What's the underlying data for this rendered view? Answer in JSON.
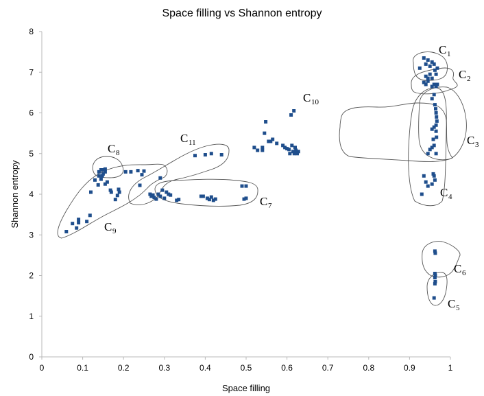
{
  "chart_data": {
    "type": "scatter",
    "title": "Space filling vs Shannon entropy",
    "xlabel": "Space filling",
    "ylabel": "Shannon entropy",
    "xlim": [
      0,
      1
    ],
    "ylim": [
      0,
      8
    ],
    "x_ticks": [
      "0",
      "0.1",
      "0.2",
      "0.3",
      "0.4",
      "0.5",
      "0.6",
      "0.7",
      "0.8",
      "0.9",
      "1"
    ],
    "y_ticks": [
      "0",
      "1",
      "2",
      "3",
      "4",
      "5",
      "6",
      "7",
      "8"
    ],
    "grid": false,
    "legend": "none",
    "marker_color": "#1f4e8c",
    "clusters": [
      {
        "label": "C",
        "sub": "1",
        "name": "C1"
      },
      {
        "label": "C",
        "sub": "2",
        "name": "C2"
      },
      {
        "label": "C",
        "sub": "3",
        "name": "C3"
      },
      {
        "label": "C",
        "sub": "4",
        "name": "C4"
      },
      {
        "label": "C",
        "sub": "5",
        "name": "C5"
      },
      {
        "label": "C",
        "sub": "6",
        "name": "C6"
      },
      {
        "label": "C",
        "sub": "7",
        "name": "C7"
      },
      {
        "label": "C",
        "sub": "8",
        "name": "C8"
      },
      {
        "label": "C",
        "sub": "9",
        "name": "C9"
      },
      {
        "label": "C",
        "sub": "10",
        "name": "C10"
      },
      {
        "label": "C",
        "sub": "11",
        "name": "C11"
      }
    ],
    "points": [
      [
        0.06,
        3.08
      ],
      [
        0.075,
        3.28
      ],
      [
        0.085,
        3.17
      ],
      [
        0.09,
        3.3
      ],
      [
        0.09,
        3.38
      ],
      [
        0.11,
        3.33
      ],
      [
        0.118,
        3.48
      ],
      [
        0.12,
        4.05
      ],
      [
        0.13,
        4.35
      ],
      [
        0.138,
        4.23
      ],
      [
        0.14,
        4.45
      ],
      [
        0.145,
        4.37
      ],
      [
        0.155,
        4.25
      ],
      [
        0.16,
        4.3
      ],
      [
        0.168,
        4.1
      ],
      [
        0.17,
        4.05
      ],
      [
        0.18,
        3.87
      ],
      [
        0.185,
        3.97
      ],
      [
        0.188,
        4.12
      ],
      [
        0.19,
        4.05
      ],
      [
        0.205,
        4.55
      ],
      [
        0.218,
        4.55
      ],
      [
        0.235,
        4.58
      ],
      [
        0.24,
        4.22
      ],
      [
        0.245,
        4.48
      ],
      [
        0.25,
        4.57
      ],
      [
        0.14,
        4.55
      ],
      [
        0.145,
        4.6
      ],
      [
        0.15,
        4.6
      ],
      [
        0.15,
        4.5
      ],
      [
        0.155,
        4.55
      ],
      [
        0.155,
        4.62
      ],
      [
        0.148,
        4.45
      ],
      [
        0.265,
        4.0
      ],
      [
        0.268,
        3.95
      ],
      [
        0.272,
        3.98
      ],
      [
        0.275,
        3.92
      ],
      [
        0.28,
        3.88
      ],
      [
        0.285,
        4.0
      ],
      [
        0.29,
        4.4
      ],
      [
        0.29,
        3.95
      ],
      [
        0.295,
        4.1
      ],
      [
        0.3,
        3.9
      ],
      [
        0.305,
        4.05
      ],
      [
        0.31,
        4.0
      ],
      [
        0.315,
        3.98
      ],
      [
        0.33,
        3.85
      ],
      [
        0.335,
        3.87
      ],
      [
        0.39,
        3.95
      ],
      [
        0.395,
        3.95
      ],
      [
        0.405,
        3.9
      ],
      [
        0.41,
        3.87
      ],
      [
        0.415,
        3.93
      ],
      [
        0.42,
        3.85
      ],
      [
        0.425,
        3.88
      ],
      [
        0.49,
        4.2
      ],
      [
        0.495,
        3.88
      ],
      [
        0.5,
        4.2
      ],
      [
        0.5,
        3.9
      ],
      [
        0.375,
        4.95
      ],
      [
        0.4,
        4.97
      ],
      [
        0.415,
        5.0
      ],
      [
        0.44,
        4.97
      ],
      [
        0.52,
        5.15
      ],
      [
        0.528,
        5.08
      ],
      [
        0.54,
        5.15
      ],
      [
        0.54,
        5.08
      ],
      [
        0.545,
        5.5
      ],
      [
        0.548,
        5.78
      ],
      [
        0.555,
        5.3
      ],
      [
        0.56,
        5.3
      ],
      [
        0.565,
        5.35
      ],
      [
        0.575,
        5.25
      ],
      [
        0.59,
        5.2
      ],
      [
        0.595,
        5.15
      ],
      [
        0.6,
        5.12
      ],
      [
        0.605,
        5.1
      ],
      [
        0.607,
        5.0
      ],
      [
        0.61,
        5.95
      ],
      [
        0.612,
        5.2
      ],
      [
        0.615,
        5.05
      ],
      [
        0.617,
        6.05
      ],
      [
        0.618,
        5.0
      ],
      [
        0.62,
        5.15
      ],
      [
        0.622,
        5.08
      ],
      [
        0.625,
        5.0
      ],
      [
        0.628,
        5.05
      ],
      [
        0.925,
        7.1
      ],
      [
        0.935,
        7.35
      ],
      [
        0.94,
        7.2
      ],
      [
        0.945,
        7.3
      ],
      [
        0.95,
        7.15
      ],
      [
        0.955,
        7.25
      ],
      [
        0.96,
        7.2
      ],
      [
        0.962,
        7.05
      ],
      [
        0.965,
        6.95
      ],
      [
        0.968,
        7.1
      ],
      [
        0.94,
        6.9
      ],
      [
        0.945,
        6.85
      ],
      [
        0.95,
        6.95
      ],
      [
        0.955,
        6.85
      ],
      [
        0.935,
        6.75
      ],
      [
        0.94,
        6.7
      ],
      [
        0.945,
        6.78
      ],
      [
        0.955,
        6.65
      ],
      [
        0.96,
        6.7
      ],
      [
        0.965,
        6.65
      ],
      [
        0.968,
        6.7
      ],
      [
        0.955,
        6.35
      ],
      [
        0.96,
        6.45
      ],
      [
        0.962,
        6.2
      ],
      [
        0.964,
        6.1
      ],
      [
        0.965,
        6.0
      ],
      [
        0.966,
        5.9
      ],
      [
        0.967,
        5.8
      ],
      [
        0.965,
        5.7
      ],
      [
        0.96,
        5.65
      ],
      [
        0.955,
        5.6
      ],
      [
        0.965,
        5.55
      ],
      [
        0.966,
        5.4
      ],
      [
        0.958,
        5.35
      ],
      [
        0.96,
        5.2
      ],
      [
        0.955,
        5.15
      ],
      [
        0.95,
        5.1
      ],
      [
        0.945,
        5.0
      ],
      [
        0.965,
        5.0
      ],
      [
        0.935,
        4.45
      ],
      [
        0.94,
        4.3
      ],
      [
        0.945,
        4.2
      ],
      [
        0.955,
        4.25
      ],
      [
        0.958,
        4.5
      ],
      [
        0.96,
        4.45
      ],
      [
        0.962,
        4.35
      ],
      [
        0.93,
        4.0
      ],
      [
        0.962,
        2.6
      ],
      [
        0.963,
        2.55
      ],
      [
        0.962,
        2.05
      ],
      [
        0.963,
        2.0
      ],
      [
        0.962,
        1.95
      ],
      [
        0.963,
        1.85
      ],
      [
        0.962,
        1.8
      ],
      [
        0.96,
        1.45
      ]
    ]
  }
}
